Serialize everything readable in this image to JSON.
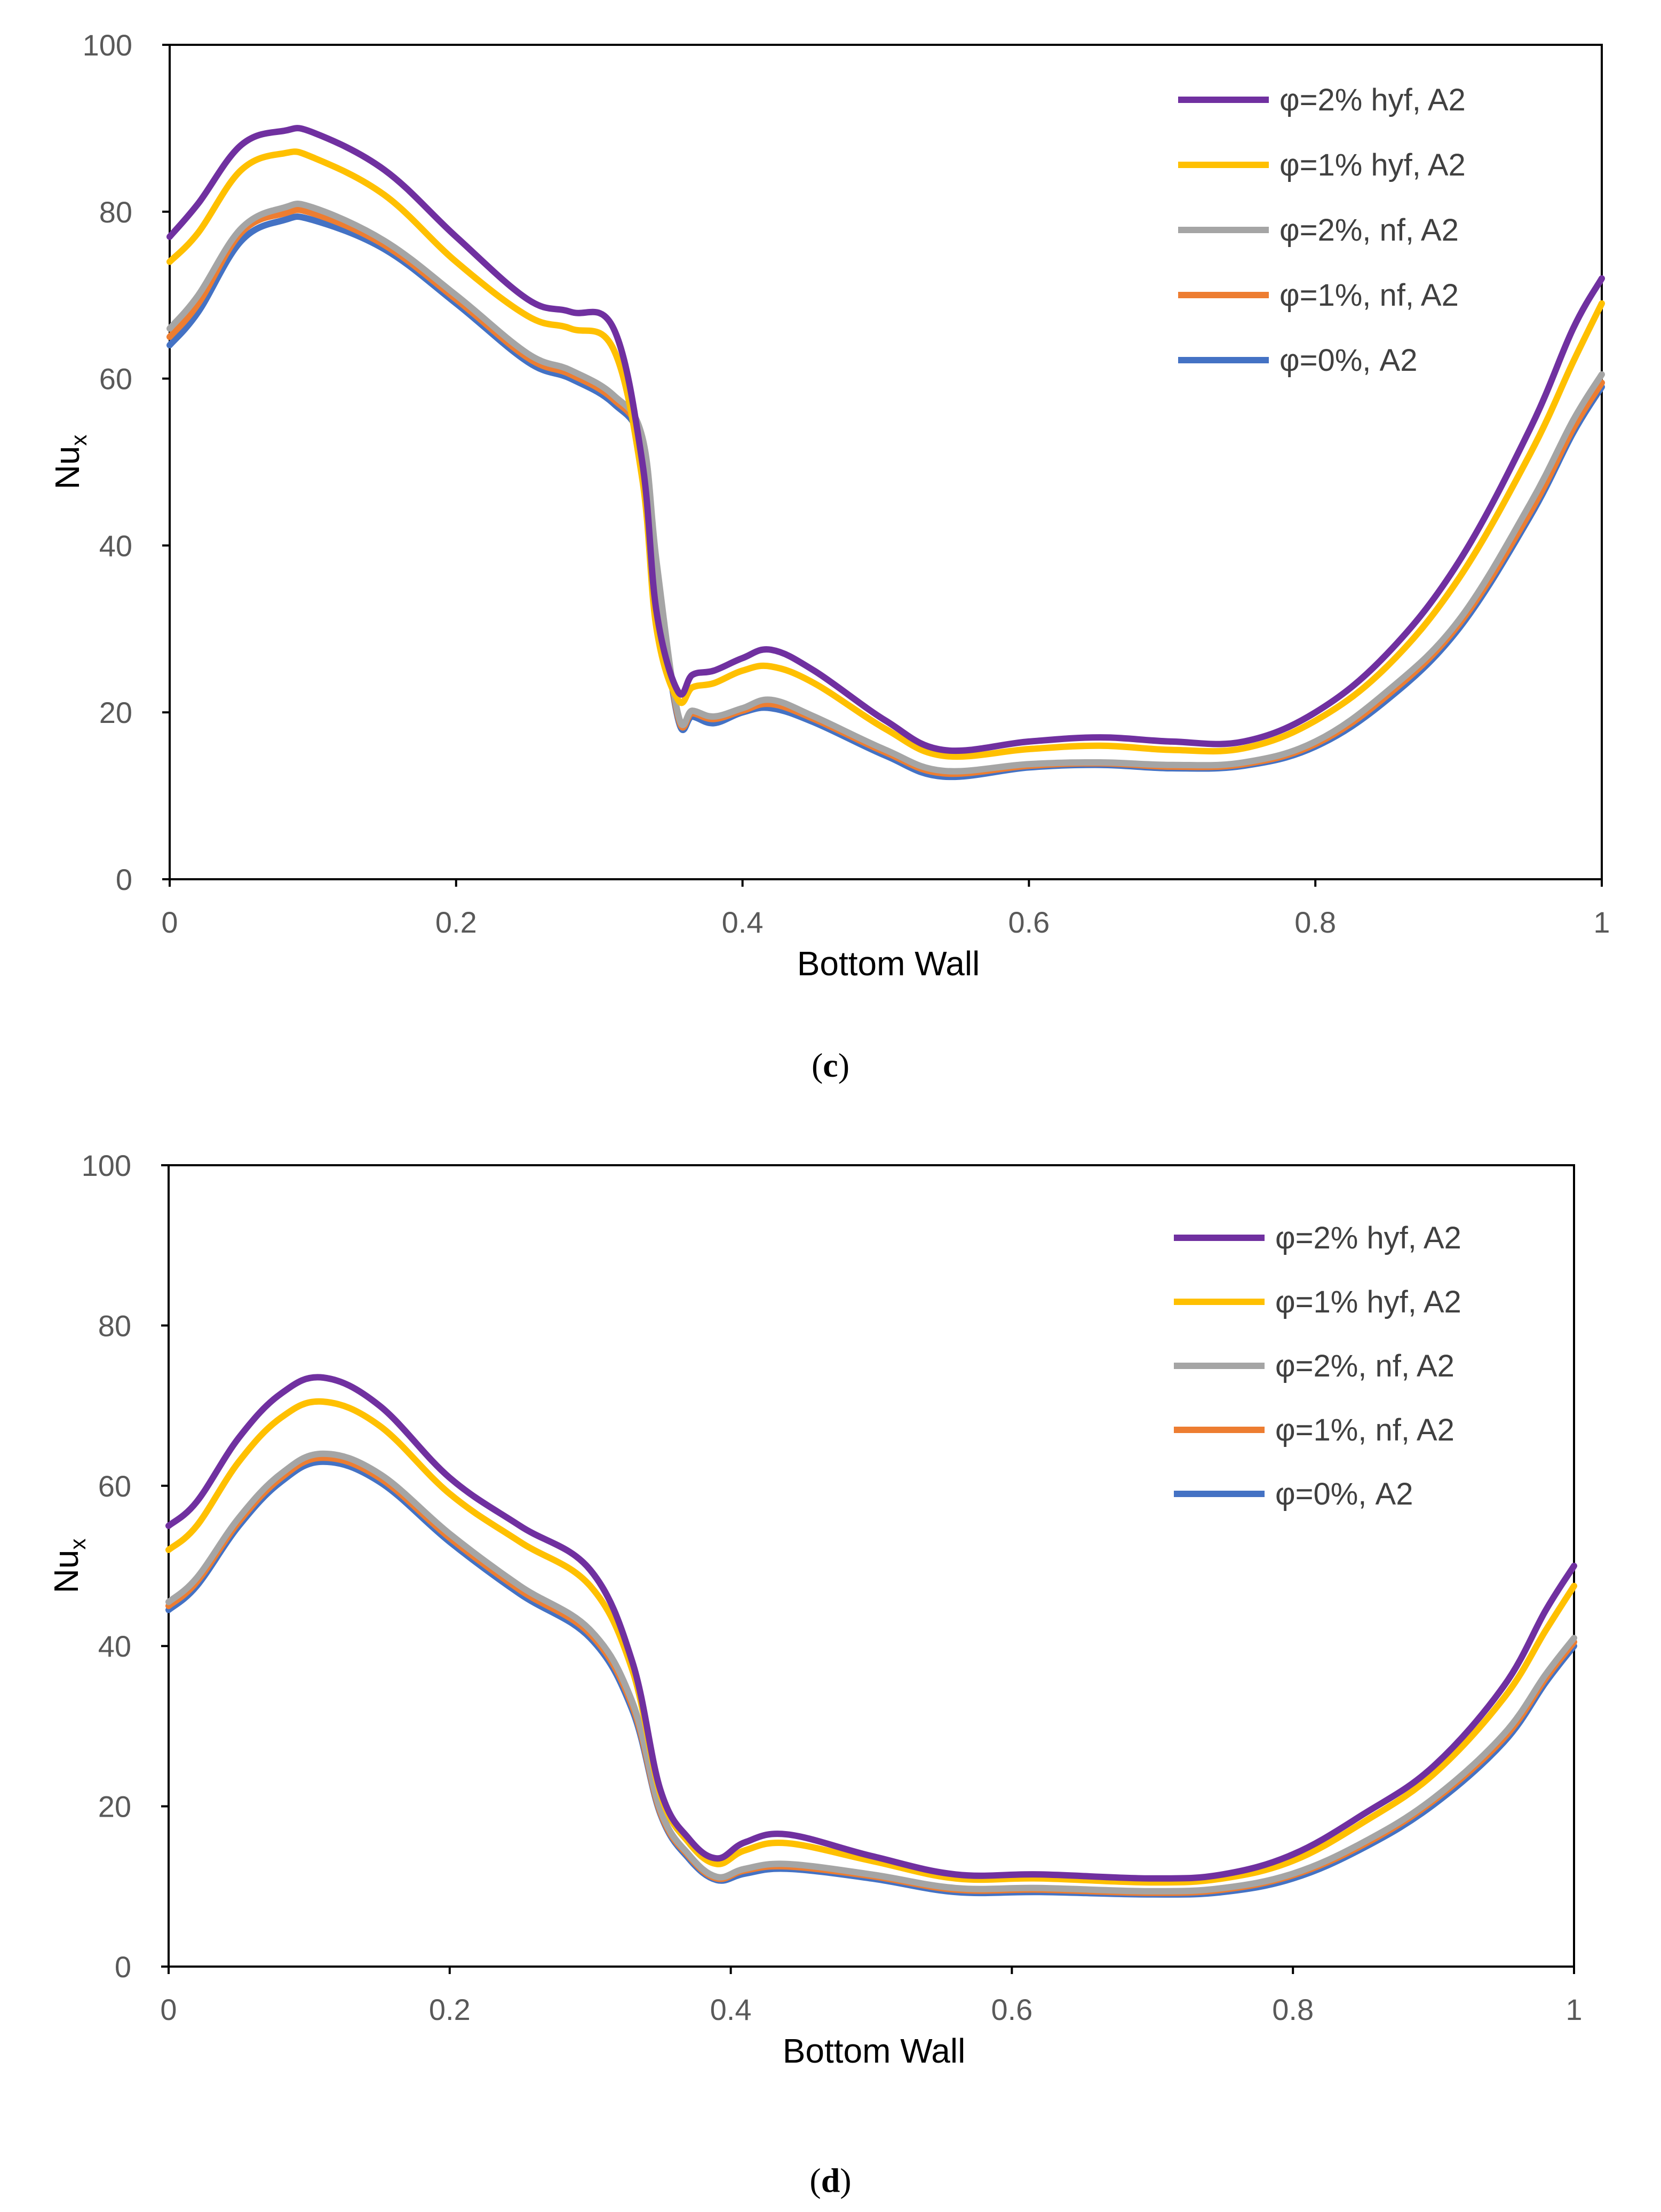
{
  "panels": [
    {
      "caption": {
        "open": "(",
        "letter": "c",
        "close": ")"
      },
      "chart_data": {
        "type": "line",
        "xlabel": "Bottom Wall",
        "ylabel": "Nu",
        "ylabel_sub": "x",
        "xlim": [
          0,
          1
        ],
        "ylim": [
          0,
          100
        ],
        "x_ticks": [
          "0",
          "0.2",
          "0.4",
          "0.6",
          "0.8",
          "1"
        ],
        "y_ticks": [
          "0",
          "20",
          "40",
          "60",
          "80",
          "100"
        ],
        "legend_position": "top-right",
        "series": [
          {
            "name": "φ=2% hyf, A2",
            "color": "#7030A0",
            "x": [
              0,
              0.02,
              0.05,
              0.08,
              0.1,
              0.15,
              0.2,
              0.25,
              0.28,
              0.31,
              0.33,
              0.34,
              0.355,
              0.365,
              0.38,
              0.4,
              0.42,
              0.45,
              0.5,
              0.54,
              0.6,
              0.65,
              0.7,
              0.75,
              0.8,
              0.85,
              0.9,
              0.95,
              0.98,
              1.0
            ],
            "y": [
              77,
              81,
              88,
              89.7,
              89.5,
              85,
              77,
              69.5,
              68,
              66,
              50,
              32,
              22.5,
              24.5,
              25,
              26.5,
              27.5,
              25,
              19,
              15.5,
              16.5,
              17,
              16.5,
              16.5,
              20,
              27,
              38,
              54,
              66,
              72
            ]
          },
          {
            "name": "φ=1% hyf, A2",
            "color": "#FFC000",
            "x": [
              0,
              0.02,
              0.05,
              0.08,
              0.1,
              0.15,
              0.2,
              0.25,
              0.28,
              0.31,
              0.33,
              0.34,
              0.355,
              0.365,
              0.38,
              0.4,
              0.42,
              0.45,
              0.5,
              0.54,
              0.6,
              0.65,
              0.7,
              0.75,
              0.8,
              0.85,
              0.9,
              0.95,
              0.98,
              1.0
            ],
            "y": [
              74,
              77.5,
              85,
              87,
              86.5,
              82,
              74,
              67.5,
              66,
              63.5,
              48,
              30,
              21.5,
              23,
              23.5,
              25,
              25.5,
              23.5,
              18,
              14.8,
              15.6,
              16,
              15.5,
              15.7,
              19,
              25.5,
              36,
              51,
              62,
              69
            ]
          },
          {
            "name": "φ=2%, nf, A2",
            "color": "#A5A5A5",
            "x": [
              0,
              0.02,
              0.05,
              0.08,
              0.1,
              0.15,
              0.2,
              0.25,
              0.28,
              0.31,
              0.33,
              0.34,
              0.355,
              0.365,
              0.38,
              0.4,
              0.42,
              0.45,
              0.5,
              0.54,
              0.6,
              0.65,
              0.7,
              0.75,
              0.8,
              0.85,
              0.9,
              0.95,
              0.98,
              1.0
            ],
            "y": [
              66,
              70,
              78,
              80.5,
              80.5,
              76.5,
              70,
              63,
              61,
              58,
              53,
              38,
              19.8,
              20.2,
              19.5,
              20.5,
              21.5,
              19.5,
              15.5,
              13,
              13.8,
              14,
              13.7,
              14,
              16.5,
              22.5,
              31,
              45,
              55,
              60.5
            ]
          },
          {
            "name": "φ=1%, nf, A2",
            "color": "#ED7D31",
            "x": [
              0,
              0.02,
              0.05,
              0.08,
              0.1,
              0.15,
              0.2,
              0.25,
              0.28,
              0.31,
              0.33,
              0.34,
              0.355,
              0.365,
              0.38,
              0.4,
              0.42,
              0.45,
              0.5,
              0.54,
              0.6,
              0.65,
              0.7,
              0.75,
              0.8,
              0.85,
              0.9,
              0.95,
              0.98,
              1.0
            ],
            "y": [
              65,
              69,
              77.5,
              79.8,
              79.8,
              76,
              69.5,
              62.5,
              60.5,
              57.5,
              52.5,
              37.5,
              19.5,
              19.9,
              19.2,
              20.2,
              21,
              19.2,
              15.2,
              12.7,
              13.6,
              13.9,
              13.5,
              13.8,
              16.2,
              22,
              30.5,
              44,
              54,
              59.5
            ]
          },
          {
            "name": "φ=0%, A2",
            "color": "#4472C4",
            "x": [
              0,
              0.02,
              0.05,
              0.08,
              0.1,
              0.15,
              0.2,
              0.25,
              0.28,
              0.31,
              0.33,
              0.34,
              0.355,
              0.365,
              0.38,
              0.4,
              0.42,
              0.45,
              0.5,
              0.54,
              0.6,
              0.65,
              0.7,
              0.75,
              0.8,
              0.85,
              0.9,
              0.95,
              0.98,
              1.0
            ],
            "y": [
              64,
              68,
              76.5,
              79,
              79,
              75.5,
              69,
              62,
              60,
              57,
              52,
              37,
              19.2,
              19.5,
              18.7,
              20,
              20.5,
              18.8,
              14.8,
              12.3,
              13.4,
              13.7,
              13.3,
              13.6,
              15.9,
              21.5,
              30,
              43.5,
              53.5,
              59
            ]
          }
        ]
      }
    },
    {
      "caption": {
        "open": "(",
        "letter": "d",
        "close": ")"
      },
      "chart_data": {
        "type": "line",
        "xlabel": "Bottom Wall",
        "ylabel": "Nu",
        "ylabel_sub": "x",
        "xlim": [
          0,
          1
        ],
        "ylim": [
          0,
          100
        ],
        "x_ticks": [
          "0",
          "0.2",
          "0.4",
          "0.6",
          "0.8",
          "1"
        ],
        "y_ticks": [
          "0",
          "20",
          "40",
          "60",
          "80",
          "100"
        ],
        "legend_position": "top-right",
        "series": [
          {
            "name": "φ=2% hyf, A2",
            "color": "#7030A0",
            "x": [
              0,
              0.02,
              0.05,
              0.08,
              0.11,
              0.15,
              0.2,
              0.25,
              0.3,
              0.33,
              0.35,
              0.37,
              0.39,
              0.41,
              0.44,
              0.5,
              0.56,
              0.62,
              0.7,
              0.75,
              0.8,
              0.85,
              0.9,
              0.95,
              0.98,
              1.0
            ],
            "y": [
              55,
              58,
              66,
              71.5,
              73.5,
              70,
              61,
              55,
              49.5,
              38,
              22,
              16,
              13.5,
              15.5,
              16.5,
              13.8,
              11.5,
              11.5,
              11,
              11.5,
              14,
              19,
              25,
              35,
              44.5,
              50
            ]
          },
          {
            "name": "φ=1% hyf, A2",
            "color": "#FFC000",
            "x": [
              0,
              0.02,
              0.05,
              0.08,
              0.11,
              0.15,
              0.2,
              0.25,
              0.3,
              0.33,
              0.35,
              0.37,
              0.39,
              0.41,
              0.44,
              0.5,
              0.56,
              0.62,
              0.7,
              0.75,
              0.8,
              0.85,
              0.9,
              0.95,
              0.98,
              1.0
            ],
            "y": [
              52,
              55,
              63,
              68.5,
              70.5,
              67.5,
              59,
              53,
              47.5,
              37,
              21.5,
              15.5,
              12.8,
              14.5,
              15.4,
              13.2,
              11,
              11,
              10.5,
              11,
              13.2,
              18,
              24,
              33.5,
              42,
              47.5
            ]
          },
          {
            "name": "φ=2%, nf, A2",
            "color": "#A5A5A5",
            "x": [
              0,
              0.02,
              0.05,
              0.08,
              0.11,
              0.15,
              0.2,
              0.25,
              0.3,
              0.33,
              0.35,
              0.37,
              0.39,
              0.41,
              0.44,
              0.5,
              0.56,
              0.62,
              0.7,
              0.75,
              0.8,
              0.85,
              0.9,
              0.95,
              0.98,
              1.0
            ],
            "y": [
              45.5,
              48.5,
              56,
              61.5,
              64,
              61.5,
              54,
              47.5,
              42,
              33,
              19.5,
              14,
              11.2,
              12.2,
              12.8,
              11.5,
              9.8,
              9.8,
              9.4,
              9.8,
              11.6,
              15.5,
              21,
              29,
              36.5,
              41
            ]
          },
          {
            "name": "φ=1%, nf, A2",
            "color": "#ED7D31",
            "x": [
              0,
              0.02,
              0.05,
              0.08,
              0.11,
              0.15,
              0.2,
              0.25,
              0.3,
              0.33,
              0.35,
              0.37,
              0.39,
              0.41,
              0.44,
              0.5,
              0.56,
              0.62,
              0.7,
              0.75,
              0.8,
              0.85,
              0.9,
              0.95,
              0.98,
              1.0
            ],
            "y": [
              45,
              48,
              55.5,
              61,
              63.5,
              61,
              53.5,
              47,
              41.5,
              32.5,
              19.2,
              13.8,
              11,
              12,
              12.5,
              11.3,
              9.6,
              9.6,
              9.2,
              9.6,
              11.4,
              15.2,
              20.7,
              28.5,
              36,
              40.5
            ]
          },
          {
            "name": "φ=0%, A2",
            "color": "#4472C4",
            "x": [
              0,
              0.02,
              0.05,
              0.08,
              0.11,
              0.15,
              0.2,
              0.25,
              0.3,
              0.33,
              0.35,
              0.37,
              0.39,
              0.41,
              0.44,
              0.5,
              0.56,
              0.62,
              0.7,
              0.75,
              0.8,
              0.85,
              0.9,
              0.95,
              0.98,
              1.0
            ],
            "y": [
              44.5,
              47.5,
              55,
              60.5,
              63,
              60.5,
              53,
              46.5,
              41,
              32,
              19,
              13.5,
              10.8,
              11.6,
              12.2,
              11,
              9.3,
              9.3,
              9,
              9.3,
              11,
              14.8,
              20.2,
              28,
              35.5,
              40
            ]
          }
        ]
      }
    }
  ]
}
